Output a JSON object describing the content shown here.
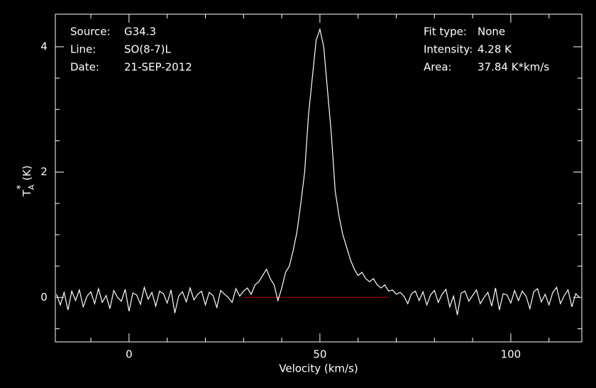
{
  "chart_data": {
    "type": "line",
    "xlabel": "Velocity (km/s)",
    "ylabel": {
      "base": "T",
      "sup": "*",
      "sub": "A",
      "unit": "(K)"
    },
    "annotations_left": [
      {
        "label": "Source:",
        "value": "G34.3"
      },
      {
        "label": "Line:",
        "value": "SO(8-7)L"
      },
      {
        "label": "Date:",
        "value": "21-SEP-2012"
      }
    ],
    "annotations_right": [
      {
        "label": "Fit type:",
        "value": "None"
      },
      {
        "label": "Intensity:",
        "value": "4.28 K"
      },
      {
        "label": "Area:",
        "value": "37.84 K*km/s"
      }
    ],
    "xlim": [
      -19.3,
      118.6
    ],
    "ylim": [
      -0.71,
      4.52
    ],
    "xticks": [
      0,
      50,
      100
    ],
    "yticks": [
      0,
      2,
      4
    ],
    "xminor_ticks": [
      -10,
      10,
      20,
      30,
      40,
      60,
      70,
      80,
      90,
      110
    ],
    "yminor_ticks": [
      -0.5,
      0.5,
      1,
      1.5,
      2.5,
      3,
      3.5
    ],
    "color": "#ffffff",
    "baseline": {
      "x": [
        30,
        68
      ],
      "value": 0,
      "color": "#c00000"
    },
    "x": [
      -19,
      -18,
      -17,
      -16,
      -15,
      -14,
      -13,
      -12,
      -11,
      -10,
      -9,
      -8,
      -7,
      -6,
      -5,
      -4,
      -3,
      -2,
      -1,
      0,
      1,
      2,
      3,
      4,
      5,
      6,
      7,
      8,
      9,
      10,
      11,
      12,
      13,
      14,
      15,
      16,
      17,
      18,
      19,
      20,
      21,
      22,
      23,
      24,
      25,
      26,
      27,
      28,
      29,
      30,
      31,
      32,
      33,
      34,
      35,
      36,
      37,
      38,
      39,
      40,
      41,
      42,
      43,
      44,
      45,
      46,
      47,
      48,
      49,
      50,
      51,
      52,
      53,
      54,
      55,
      56,
      57,
      58,
      59,
      60,
      61,
      62,
      63,
      64,
      65,
      66,
      67,
      68,
      69,
      70,
      71,
      72,
      73,
      74,
      75,
      76,
      77,
      78,
      79,
      80,
      81,
      82,
      83,
      84,
      85,
      86,
      87,
      88,
      89,
      90,
      91,
      92,
      93,
      94,
      95,
      96,
      97,
      98,
      99,
      100,
      101,
      102,
      103,
      104,
      105,
      106,
      107,
      108,
      109,
      110,
      111,
      112,
      113,
      114,
      115,
      116,
      117,
      118
    ],
    "values": [
      0.05,
      -0.12,
      0.08,
      -0.2,
      0.1,
      -0.05,
      0.12,
      -0.15,
      0.02,
      0.09,
      -0.1,
      0.14,
      -0.08,
      0.03,
      -0.18,
      0.11,
      0.0,
      -0.06,
      0.13,
      -0.22,
      0.07,
      0.04,
      -0.11,
      0.16,
      -0.03,
      0.08,
      -0.14,
      0.1,
      0.06,
      -0.09,
      0.12,
      -0.25,
      0.02,
      0.09,
      -0.07,
      0.15,
      -0.04,
      0.05,
      0.1,
      -0.12,
      0.08,
      0.03,
      -0.16,
      0.11,
      0.05,
      0.0,
      -0.08,
      0.14,
      0.02,
      0.1,
      0.15,
      0.05,
      0.2,
      0.25,
      0.35,
      0.45,
      0.3,
      0.2,
      -0.05,
      0.15,
      0.4,
      0.5,
      0.75,
      1.05,
      1.5,
      2.0,
      2.9,
      3.5,
      4.1,
      4.28,
      4.0,
      3.3,
      2.6,
      1.7,
      1.3,
      1.0,
      0.8,
      0.6,
      0.45,
      0.35,
      0.4,
      0.3,
      0.25,
      0.3,
      0.2,
      0.15,
      0.2,
      0.1,
      0.12,
      0.05,
      0.08,
      0.02,
      -0.1,
      0.06,
      0.1,
      -0.05,
      0.09,
      -0.12,
      0.04,
      0.11,
      -0.08,
      0.05,
      0.13,
      -0.15,
      0.02,
      -0.28,
      0.07,
      0.1,
      -0.06,
      0.03,
      0.12,
      -0.1,
      0.0,
      0.08,
      -0.14,
      0.15,
      -0.2,
      0.06,
      0.04,
      -0.09,
      0.11,
      -0.05,
      0.1,
      0.02,
      -0.18,
      0.09,
      0.14,
      -0.07,
      0.05,
      -0.12,
      0.08,
      0.16,
      -0.1,
      0.03,
      0.12,
      -0.15,
      0.06,
      0.0
    ]
  }
}
